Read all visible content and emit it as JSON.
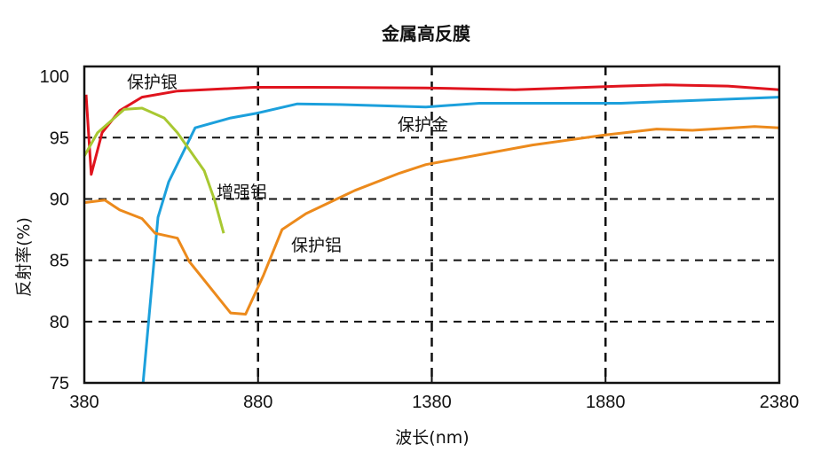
{
  "chart_data": {
    "type": "line",
    "title": "金属高反膜",
    "xlabel": "波长(nm)",
    "ylabel": "反射率(%)",
    "xlim": [
      380,
      2380
    ],
    "ylim": [
      75,
      100.8
    ],
    "xticks": [
      "380",
      "880",
      "1380",
      "1880",
      "2380"
    ],
    "yticks": [
      "100",
      "95",
      "90",
      "85",
      "80",
      "75"
    ],
    "grid": "dashed at x=880,1380,1880 and y=80,85,90,95",
    "legend": "none (inline curve labels)",
    "series": [
      {
        "name": "保护银",
        "color": "#e0141e",
        "x": [
          385,
          400,
          431,
          482,
          546,
          648,
          870,
          1031,
          1363,
          1619,
          1925,
          2053,
          2232,
          2380
        ],
        "y": [
          98.5,
          92,
          95.4,
          97.2,
          98.3,
          98.8,
          99.1,
          99.1,
          99.05,
          98.9,
          99.2,
          99.3,
          99.2,
          98.9
        ]
      },
      {
        "name": "保护金",
        "color": "#1ca0dc",
        "x": [
          549,
          592,
          623,
          699,
          801,
          878,
          993,
          1108,
          1363,
          1517,
          1925,
          2380
        ],
        "y": [
          75,
          88.5,
          91.4,
          95.8,
          96.6,
          97,
          97.75,
          97.7,
          97.5,
          97.8,
          97.8,
          98.3
        ]
      },
      {
        "name": "增强铝",
        "color": "#a8c832",
        "x": [
          380,
          418,
          495,
          546,
          610,
          648,
          725,
          755,
          781
        ],
        "y": [
          93.5,
          95.4,
          97.3,
          97.4,
          96.6,
          95.4,
          92.3,
          89.9,
          87.2
        ]
      },
      {
        "name": "保护铝",
        "color": "#ec8a1c",
        "x": [
          380,
          439,
          482,
          546,
          584,
          648,
          682,
          801,
          844,
          896,
          949,
          1018,
          1159,
          1287,
          1363,
          1670,
          1874,
          2027,
          2130,
          2309,
          2380
        ],
        "y": [
          89.7,
          89.9,
          89.1,
          88.4,
          87.2,
          86.8,
          84.9,
          80.7,
          80.6,
          83.8,
          87.5,
          88.8,
          90.7,
          92.1,
          92.8,
          94.4,
          95.2,
          95.7,
          95.6,
          95.9,
          95.8
        ]
      }
    ]
  }
}
